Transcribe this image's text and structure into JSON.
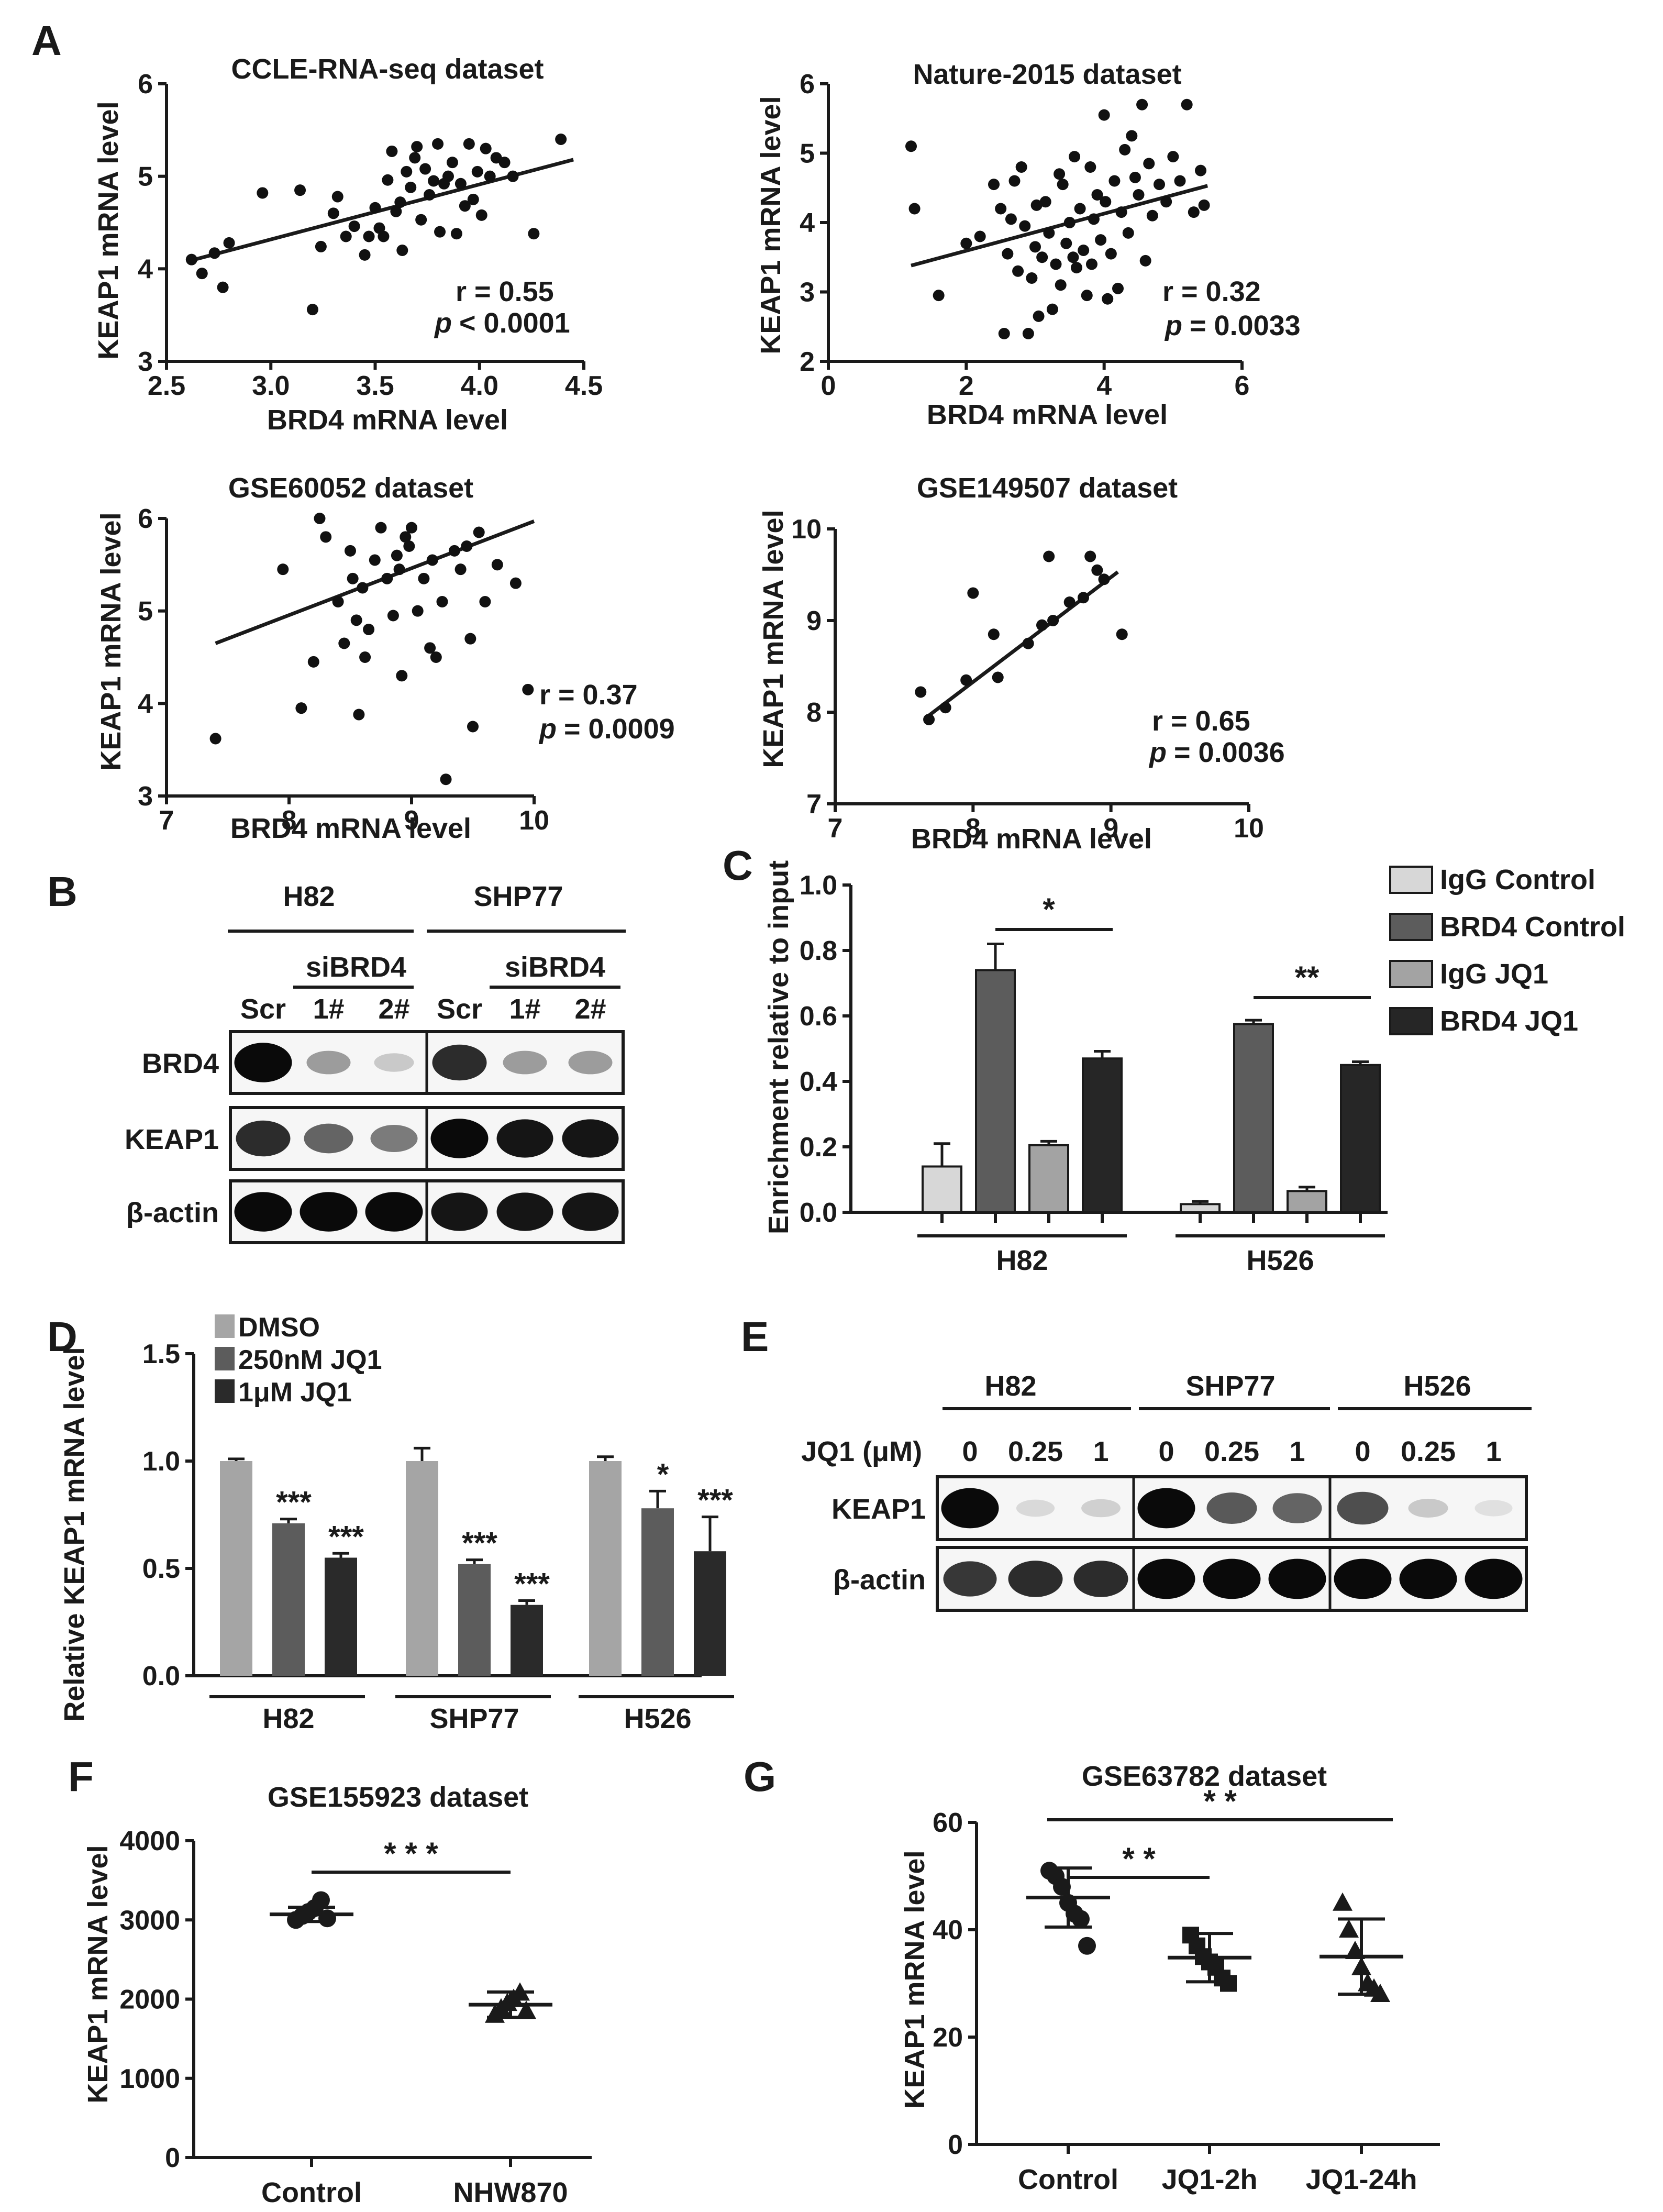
{
  "chart_data": [
    {
      "panel": "A",
      "type": "scatter",
      "title": "CCLE-RNA-seq dataset",
      "xlabel": "BRD4 mRNA level",
      "ylabel": "KEAP1 mRNA level",
      "xlim": [
        2.5,
        4.5
      ],
      "ylim": [
        3,
        6
      ],
      "xticks": [
        "2.5",
        "3.0",
        "3.5",
        "4.0",
        "4.5"
      ],
      "yticks": [
        "3",
        "4",
        "5",
        "6"
      ],
      "stat_r": "r = 0.55",
      "stat_p_label": "p",
      "stat_p_value": "< 0.0001",
      "fit": [
        [
          2.6,
          4.08
        ],
        [
          4.45,
          5.18
        ]
      ],
      "points": [
        [
          2.62,
          4.1
        ],
        [
          2.67,
          3.95
        ],
        [
          2.73,
          4.17
        ],
        [
          2.77,
          3.8
        ],
        [
          2.8,
          4.28
        ],
        [
          2.96,
          4.82
        ],
        [
          3.14,
          4.85
        ],
        [
          3.2,
          3.56
        ],
        [
          3.24,
          4.24
        ],
        [
          3.3,
          4.6
        ],
        [
          3.32,
          4.78
        ],
        [
          3.36,
          4.35
        ],
        [
          3.4,
          4.46
        ],
        [
          3.45,
          4.15
        ],
        [
          3.47,
          4.35
        ],
        [
          3.5,
          4.66
        ],
        [
          3.52,
          4.44
        ],
        [
          3.54,
          4.35
        ],
        [
          3.56,
          4.96
        ],
        [
          3.58,
          5.27
        ],
        [
          3.6,
          4.62
        ],
        [
          3.62,
          4.72
        ],
        [
          3.63,
          4.2
        ],
        [
          3.65,
          5.05
        ],
        [
          3.67,
          4.88
        ],
        [
          3.69,
          5.2
        ],
        [
          3.7,
          5.32
        ],
        [
          3.72,
          4.53
        ],
        [
          3.74,
          5.08
        ],
        [
          3.76,
          4.8
        ],
        [
          3.78,
          4.95
        ],
        [
          3.8,
          5.35
        ],
        [
          3.81,
          4.4
        ],
        [
          3.83,
          4.92
        ],
        [
          3.85,
          5.0
        ],
        [
          3.87,
          5.15
        ],
        [
          3.89,
          4.38
        ],
        [
          3.91,
          4.92
        ],
        [
          3.93,
          4.68
        ],
        [
          3.95,
          5.35
        ],
        [
          3.97,
          4.75
        ],
        [
          3.99,
          5.05
        ],
        [
          4.01,
          4.58
        ],
        [
          4.03,
          5.3
        ],
        [
          4.05,
          5.0
        ],
        [
          4.08,
          5.2
        ],
        [
          4.12,
          5.15
        ],
        [
          4.16,
          5.0
        ],
        [
          4.26,
          4.38
        ],
        [
          4.39,
          5.4
        ]
      ]
    },
    {
      "panel": "A",
      "type": "scatter",
      "title": "Nature-2015 dataset",
      "xlabel": "BRD4 mRNA level",
      "ylabel": "KEAP1 mRNA level",
      "xlim": [
        0,
        6
      ],
      "ylim": [
        2,
        6
      ],
      "xticks": [
        "0",
        "2",
        "4",
        "6"
      ],
      "yticks": [
        "2",
        "3",
        "4",
        "5",
        "6"
      ],
      "stat_r": "r = 0.32",
      "stat_p_label": "p",
      "stat_p_value": "= 0.0033",
      "fit": [
        [
          1.2,
          3.38
        ],
        [
          5.5,
          4.53
        ]
      ],
      "points": [
        [
          1.2,
          5.1
        ],
        [
          1.25,
          4.2
        ],
        [
          1.6,
          2.95
        ],
        [
          2.0,
          3.7
        ],
        [
          2.2,
          3.8
        ],
        [
          2.4,
          4.55
        ],
        [
          2.5,
          4.2
        ],
        [
          2.55,
          2.4
        ],
        [
          2.6,
          3.55
        ],
        [
          2.65,
          4.05
        ],
        [
          2.7,
          4.6
        ],
        [
          2.75,
          3.3
        ],
        [
          2.8,
          4.8
        ],
        [
          2.85,
          3.95
        ],
        [
          2.9,
          2.4
        ],
        [
          2.95,
          3.2
        ],
        [
          3.0,
          3.65
        ],
        [
          3.02,
          4.25
        ],
        [
          3.05,
          2.65
        ],
        [
          3.1,
          3.5
        ],
        [
          3.15,
          4.3
        ],
        [
          3.2,
          3.85
        ],
        [
          3.25,
          2.75
        ],
        [
          3.3,
          3.4
        ],
        [
          3.35,
          4.7
        ],
        [
          3.37,
          3.1
        ],
        [
          3.4,
          4.55
        ],
        [
          3.45,
          3.7
        ],
        [
          3.5,
          4.0
        ],
        [
          3.55,
          3.5
        ],
        [
          3.57,
          4.95
        ],
        [
          3.6,
          3.35
        ],
        [
          3.65,
          4.2
        ],
        [
          3.7,
          3.6
        ],
        [
          3.75,
          2.95
        ],
        [
          3.8,
          4.8
        ],
        [
          3.82,
          3.4
        ],
        [
          3.85,
          4.05
        ],
        [
          3.9,
          4.4
        ],
        [
          3.95,
          3.75
        ],
        [
          4.0,
          5.55
        ],
        [
          4.02,
          4.3
        ],
        [
          4.05,
          2.9
        ],
        [
          4.1,
          3.55
        ],
        [
          4.15,
          4.6
        ],
        [
          4.2,
          3.05
        ],
        [
          4.25,
          4.15
        ],
        [
          4.3,
          5.05
        ],
        [
          4.35,
          3.85
        ],
        [
          4.4,
          5.25
        ],
        [
          4.45,
          4.65
        ],
        [
          4.5,
          4.4
        ],
        [
          4.55,
          5.7
        ],
        [
          4.6,
          3.45
        ],
        [
          4.65,
          4.85
        ],
        [
          4.7,
          4.1
        ],
        [
          4.8,
          4.55
        ],
        [
          4.9,
          4.3
        ],
        [
          5.0,
          4.95
        ],
        [
          5.1,
          4.6
        ],
        [
          5.2,
          5.7
        ],
        [
          5.3,
          4.15
        ],
        [
          5.4,
          4.75
        ],
        [
          5.45,
          4.25
        ]
      ]
    },
    {
      "panel": "A",
      "type": "scatter",
      "title": "GSE60052 dataset",
      "xlabel": "BRD4 mRNA level",
      "ylabel": "KEAP1 mRNA level",
      "xlim": [
        7,
        10
      ],
      "ylim": [
        3,
        6
      ],
      "xticks": [
        "7",
        "8",
        "9",
        "10"
      ],
      "yticks": [
        "3",
        "4",
        "5",
        "6"
      ],
      "stat_r": "r = 0.37",
      "stat_p_label": "p",
      "stat_p_value": "= 0.0009",
      "fit": [
        [
          7.4,
          4.65
        ],
        [
          10.0,
          5.97
        ]
      ],
      "points": [
        [
          7.4,
          3.62
        ],
        [
          7.95,
          5.45
        ],
        [
          8.1,
          3.95
        ],
        [
          8.2,
          4.45
        ],
        [
          8.25,
          6.0
        ],
        [
          8.3,
          5.8
        ],
        [
          8.4,
          5.1
        ],
        [
          8.45,
          4.65
        ],
        [
          8.5,
          5.65
        ],
        [
          8.52,
          5.35
        ],
        [
          8.55,
          4.9
        ],
        [
          8.57,
          3.88
        ],
        [
          8.6,
          5.25
        ],
        [
          8.62,
          4.5
        ],
        [
          8.65,
          4.8
        ],
        [
          8.7,
          5.55
        ],
        [
          8.75,
          5.9
        ],
        [
          8.8,
          5.35
        ],
        [
          8.85,
          4.95
        ],
        [
          8.88,
          5.6
        ],
        [
          8.9,
          5.45
        ],
        [
          8.92,
          4.3
        ],
        [
          8.95,
          5.8
        ],
        [
          8.98,
          5.7
        ],
        [
          9.0,
          5.9
        ],
        [
          9.05,
          5.0
        ],
        [
          9.1,
          5.35
        ],
        [
          9.15,
          4.6
        ],
        [
          9.17,
          5.55
        ],
        [
          9.2,
          4.5
        ],
        [
          9.25,
          5.1
        ],
        [
          9.28,
          3.18
        ],
        [
          9.35,
          5.65
        ],
        [
          9.4,
          5.45
        ],
        [
          9.45,
          5.7
        ],
        [
          9.48,
          4.7
        ],
        [
          9.5,
          3.75
        ],
        [
          9.55,
          5.85
        ],
        [
          9.6,
          5.1
        ],
        [
          9.7,
          5.5
        ],
        [
          9.85,
          5.3
        ],
        [
          9.95,
          4.15
        ]
      ]
    },
    {
      "panel": "A",
      "type": "scatter",
      "title": "GSE149507 dataset",
      "xlabel": "BRD4 mRNA level",
      "ylabel": "KEAP1 mRNA level",
      "xlim": [
        7,
        10
      ],
      "ylim": [
        7,
        10
      ],
      "xticks": [
        "7",
        "8",
        "9",
        "10"
      ],
      "yticks": [
        "7",
        "8",
        "9",
        "10"
      ],
      "stat_r": "r = 0.65",
      "stat_p_label": "p",
      "stat_p_value": "= 0.0036",
      "fit": [
        [
          7.65,
          7.93
        ],
        [
          9.05,
          9.53
        ]
      ],
      "points": [
        [
          7.62,
          8.22
        ],
        [
          7.68,
          7.92
        ],
        [
          7.8,
          8.05
        ],
        [
          7.95,
          8.35
        ],
        [
          8.0,
          9.3
        ],
        [
          8.15,
          8.85
        ],
        [
          8.18,
          8.38
        ],
        [
          8.4,
          8.75
        ],
        [
          8.5,
          8.95
        ],
        [
          8.55,
          9.7
        ],
        [
          8.58,
          9.0
        ],
        [
          8.7,
          9.2
        ],
        [
          8.8,
          9.25
        ],
        [
          8.85,
          9.7
        ],
        [
          8.9,
          9.55
        ],
        [
          8.95,
          9.45
        ],
        [
          9.08,
          8.85
        ]
      ]
    },
    {
      "panel": "C",
      "type": "bar",
      "ylabel": "Enrichment relative to input",
      "ylim": [
        0,
        1.0
      ],
      "yticks": [
        "0.0",
        "0.2",
        "0.4",
        "0.6",
        "0.8",
        "1.0"
      ],
      "categories": [
        "H82",
        "H526"
      ],
      "series": [
        {
          "name": "IgG Control",
          "values": [
            0.14,
            0.025
          ],
          "errors": [
            0.07,
            0.008
          ],
          "color": "#d7d7d7"
        },
        {
          "name": "BRD4 Control",
          "values": [
            0.74,
            0.575
          ],
          "errors": [
            0.08,
            0.012
          ],
          "color": "#5c5c5c"
        },
        {
          "name": "IgG JQ1",
          "values": [
            0.205,
            0.065
          ],
          "errors": [
            0.012,
            0.012
          ],
          "color": "#a3a3a3"
        },
        {
          "name": "BRD4 JQ1",
          "values": [
            0.47,
            0.45
          ],
          "errors": [
            0.022,
            0.01
          ],
          "color": "#262626"
        }
      ],
      "significance": [
        {
          "group": "H82",
          "label": "*"
        },
        {
          "group": "H526",
          "label": "**"
        }
      ]
    },
    {
      "panel": "D",
      "type": "bar",
      "ylabel": "Relative KEAP1 mRNA level",
      "ylim": [
        0,
        1.5
      ],
      "yticks": [
        "0.0",
        "0.5",
        "1.0",
        "1.5"
      ],
      "categories": [
        "H82",
        "SHP77",
        "H526"
      ],
      "series": [
        {
          "name": "DMSO",
          "values": [
            1.0,
            1.0,
            1.0
          ],
          "errors": [
            0.01,
            0.06,
            0.02
          ],
          "color": "#a5a5a5",
          "stars": [
            "",
            "",
            ""
          ]
        },
        {
          "name": "250nM JQ1",
          "values": [
            0.71,
            0.52,
            0.78
          ],
          "errors": [
            0.02,
            0.02,
            0.08
          ],
          "color": "#5c5c5c",
          "stars": [
            "***",
            "***",
            "*"
          ]
        },
        {
          "name": "1μM JQ1",
          "values": [
            0.55,
            0.33,
            0.58
          ],
          "errors": [
            0.02,
            0.02,
            0.16
          ],
          "color": "#2a2a2a",
          "stars": [
            "***",
            "***",
            "***"
          ]
        }
      ]
    },
    {
      "panel": "F",
      "type": "scatter",
      "title": "GSE155923 dataset",
      "ylabel": "KEAP1 mRNA level",
      "ylim": [
        0,
        4000
      ],
      "yticks": [
        "0",
        "1000",
        "2000",
        "3000",
        "4000"
      ],
      "categories": [
        "Control",
        "NHW870"
      ],
      "groups": [
        {
          "name": "Control",
          "points": [
            3000,
            3050,
            3100,
            3150,
            3250,
            3020
          ],
          "mean": 3070,
          "sd": 90,
          "marker": "circle"
        },
        {
          "name": "NHW870",
          "points": [
            1800,
            1880,
            1950,
            2000,
            2080,
            1850
          ],
          "mean": 1930,
          "sd": 160,
          "marker": "triangle"
        }
      ],
      "significance": [
        {
          "from": "Control",
          "to": "NHW870",
          "label": "* * *"
        }
      ]
    },
    {
      "panel": "G",
      "type": "scatter",
      "title": "GSE63782 dataset",
      "ylabel": "KEAP1 mRNA level",
      "ylim": [
        0,
        60
      ],
      "yticks": [
        "0",
        "20",
        "40",
        "60"
      ],
      "categories": [
        "Control",
        "JQ1-2h",
        "JQ1-24h"
      ],
      "groups": [
        {
          "name": "Control",
          "points": [
            51,
            50,
            48,
            45,
            43,
            42,
            37
          ],
          "mean": 46,
          "sd": 5.5,
          "marker": "circle"
        },
        {
          "name": "JQ1-2h",
          "points": [
            39,
            37,
            35,
            34,
            33,
            31,
            30
          ],
          "mean": 34.8,
          "sd": 4.5,
          "marker": "square"
        },
        {
          "name": "JQ1-24h",
          "points": [
            45,
            40,
            36,
            33,
            30,
            29,
            28
          ],
          "mean": 35,
          "sd": 7,
          "marker": "triangle"
        }
      ],
      "significance": [
        {
          "from": "Control",
          "to": "JQ1-2h",
          "label": "* *"
        },
        {
          "from": "Control",
          "to": "JQ1-24h",
          "label": "* *"
        }
      ]
    }
  ],
  "panel_labels": {
    "a": "A",
    "b": "B",
    "c": "C",
    "d": "D",
    "e": "E",
    "f": "F",
    "g": "G"
  },
  "blot_b": {
    "cell_lines": [
      "H82",
      "SHP77"
    ],
    "sirna_label": "siBRD4",
    "lanes": [
      "Scr",
      "1#",
      "2#",
      "Scr",
      "1#",
      "2#"
    ],
    "rows": [
      {
        "label": "BRD4",
        "intensity": [
          1.0,
          0.35,
          0.15,
          0.85,
          0.35,
          0.35
        ]
      },
      {
        "label": "KEAP1",
        "intensity": [
          0.85,
          0.6,
          0.5,
          1.0,
          0.95,
          0.95
        ]
      },
      {
        "label": "β-actin",
        "intensity": [
          1.0,
          1.0,
          1.0,
          0.95,
          0.95,
          0.95
        ]
      }
    ]
  },
  "blot_e": {
    "cell_lines": [
      "H82",
      "SHP77",
      "H526"
    ],
    "treatment_label": "JQ1 (μM)",
    "lanes": [
      "0",
      "0.25",
      "1",
      "0",
      "0.25",
      "1",
      "0",
      "0.25",
      "1"
    ],
    "rows": [
      {
        "label": "KEAP1",
        "intensity": [
          1.0,
          0.08,
          0.12,
          1.0,
          0.65,
          0.6,
          0.7,
          0.15,
          0.05
        ]
      },
      {
        "label": "β-actin",
        "intensity": [
          0.8,
          0.85,
          0.85,
          1.0,
          1.0,
          1.0,
          1.0,
          1.0,
          1.0
        ]
      }
    ]
  }
}
